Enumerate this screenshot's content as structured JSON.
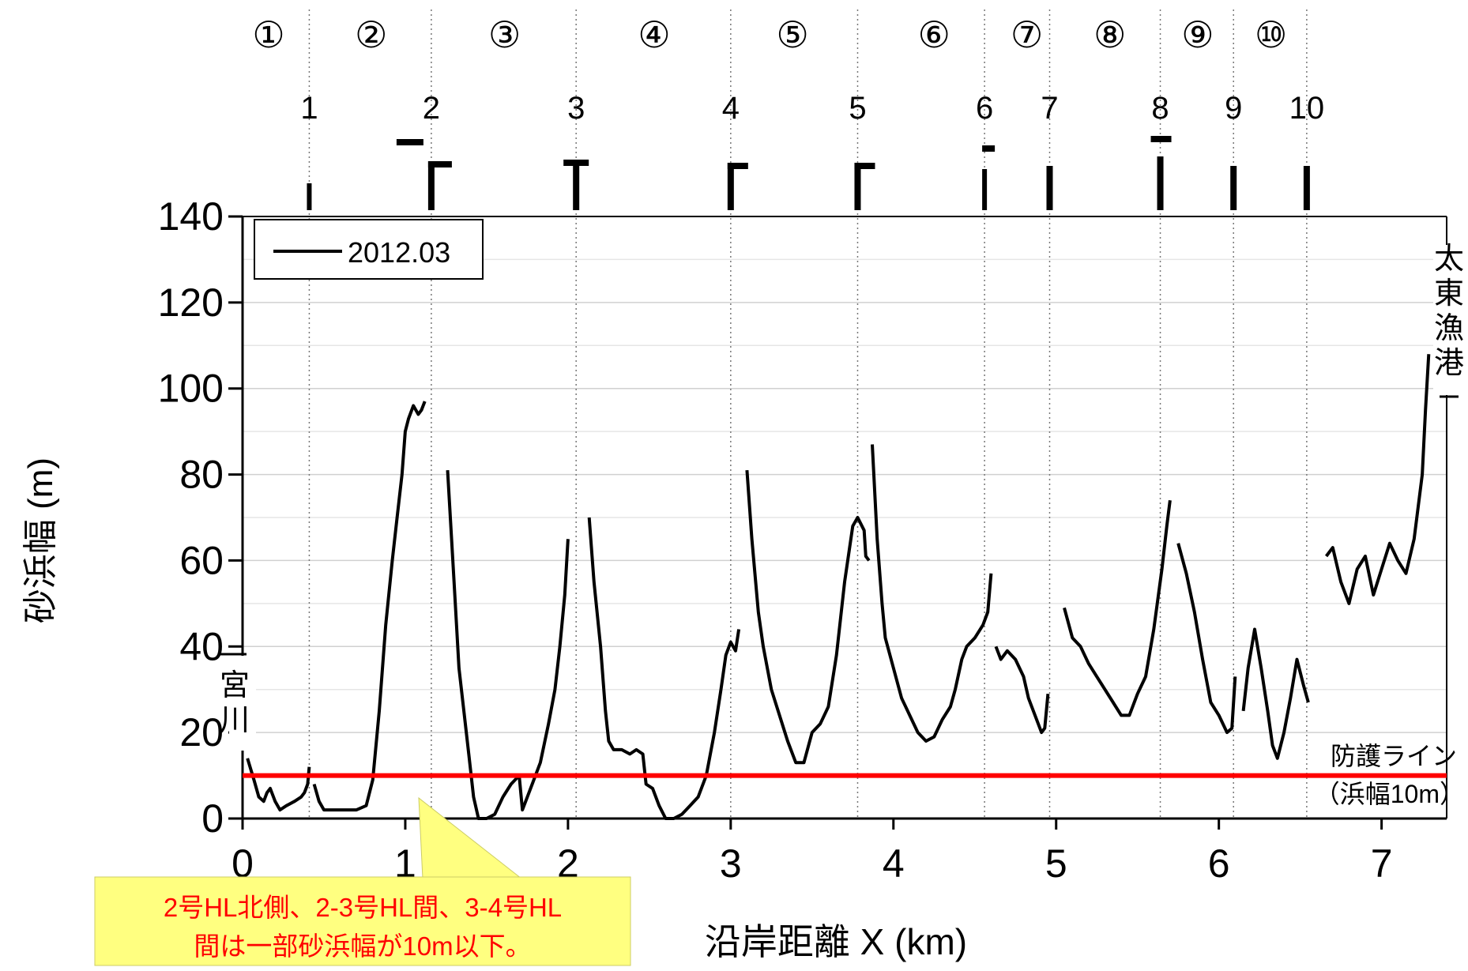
{
  "chart_data": {
    "type": "line",
    "xlabel": "沿岸距離 X (km)",
    "ylabel": "砂浜幅 (m)",
    "xlim": [
      0,
      7.4
    ],
    "ylim": [
      0,
      140
    ],
    "x_ticks": [
      0,
      1,
      2,
      3,
      4,
      5,
      6,
      7
    ],
    "y_ticks": [
      0,
      20,
      40,
      60,
      80,
      100,
      120,
      140
    ],
    "grid": true,
    "legend": {
      "entries": [
        "2012.03"
      ],
      "position": "top-left"
    },
    "series": [
      {
        "name": "2012.03",
        "color": "#000000",
        "segments": [
          [
            [
              0.03,
              14
            ],
            [
              0.07,
              9
            ],
            [
              0.1,
              5
            ],
            [
              0.13,
              4
            ],
            [
              0.15,
              6
            ],
            [
              0.17,
              7
            ],
            [
              0.2,
              4
            ],
            [
              0.23,
              2
            ],
            [
              0.27,
              3
            ],
            [
              0.32,
              4
            ],
            [
              0.36,
              5
            ],
            [
              0.38,
              6
            ],
            [
              0.4,
              8
            ],
            [
              0.41,
              12
            ]
          ],
          [
            [
              0.44,
              8
            ],
            [
              0.47,
              4
            ],
            [
              0.5,
              2
            ],
            [
              0.6,
              2
            ],
            [
              0.7,
              2
            ],
            [
              0.76,
              3
            ],
            [
              0.8,
              9
            ],
            [
              0.84,
              25
            ],
            [
              0.88,
              45
            ],
            [
              0.92,
              60
            ],
            [
              0.95,
              70
            ],
            [
              0.98,
              80
            ],
            [
              1.0,
              90
            ],
            [
              1.02,
              93
            ],
            [
              1.05,
              96
            ],
            [
              1.08,
              94
            ],
            [
              1.1,
              95
            ],
            [
              1.12,
              97
            ]
          ],
          [
            [
              1.26,
              81
            ],
            [
              1.3,
              55
            ],
            [
              1.33,
              35
            ],
            [
              1.36,
              25
            ],
            [
              1.39,
              15
            ],
            [
              1.42,
              5
            ],
            [
              1.45,
              0
            ],
            [
              1.5,
              0
            ],
            [
              1.55,
              1
            ],
            [
              1.6,
              5
            ],
            [
              1.65,
              8
            ],
            [
              1.7,
              10
            ],
            [
              1.72,
              2
            ],
            [
              1.75,
              5
            ],
            [
              1.78,
              8
            ],
            [
              1.83,
              13
            ],
            [
              1.88,
              22
            ],
            [
              1.92,
              30
            ],
            [
              1.95,
              40
            ],
            [
              1.98,
              52
            ],
            [
              2.0,
              65
            ]
          ],
          [
            [
              2.13,
              70
            ],
            [
              2.16,
              55
            ],
            [
              2.2,
              40
            ],
            [
              2.23,
              25
            ],
            [
              2.25,
              18
            ],
            [
              2.28,
              16
            ],
            [
              2.33,
              16
            ],
            [
              2.38,
              15
            ],
            [
              2.42,
              16
            ],
            [
              2.46,
              15
            ],
            [
              2.48,
              8
            ],
            [
              2.52,
              7
            ],
            [
              2.56,
              3
            ],
            [
              2.6,
              0
            ],
            [
              2.65,
              0
            ],
            [
              2.7,
              1
            ],
            [
              2.75,
              3
            ],
            [
              2.8,
              5
            ],
            [
              2.85,
              10
            ],
            [
              2.9,
              20
            ],
            [
              2.94,
              30
            ],
            [
              2.97,
              38
            ],
            [
              3.0,
              41
            ],
            [
              3.03,
              39
            ],
            [
              3.05,
              44
            ]
          ],
          [
            [
              3.1,
              81
            ],
            [
              3.13,
              65
            ],
            [
              3.17,
              48
            ],
            [
              3.2,
              40
            ],
            [
              3.25,
              30
            ],
            [
              3.3,
              24
            ],
            [
              3.35,
              18
            ],
            [
              3.4,
              13
            ],
            [
              3.45,
              13
            ],
            [
              3.5,
              20
            ],
            [
              3.55,
              22
            ],
            [
              3.6,
              26
            ],
            [
              3.65,
              38
            ],
            [
              3.7,
              55
            ],
            [
              3.75,
              68
            ],
            [
              3.78,
              70
            ],
            [
              3.82,
              67
            ],
            [
              3.83,
              61
            ],
            [
              3.85,
              60
            ]
          ],
          [
            [
              3.87,
              87
            ],
            [
              3.9,
              65
            ],
            [
              3.93,
              50
            ],
            [
              3.95,
              42
            ],
            [
              4.0,
              35
            ],
            [
              4.05,
              28
            ],
            [
              4.1,
              24
            ],
            [
              4.15,
              20
            ],
            [
              4.2,
              18
            ],
            [
              4.25,
              19
            ],
            [
              4.3,
              23
            ],
            [
              4.35,
              26
            ],
            [
              4.38,
              30
            ],
            [
              4.42,
              37
            ],
            [
              4.45,
              40
            ],
            [
              4.5,
              42
            ],
            [
              4.55,
              45
            ],
            [
              4.58,
              48
            ],
            [
              4.6,
              57
            ]
          ],
          [
            [
              4.63,
              40
            ],
            [
              4.66,
              37
            ],
            [
              4.7,
              39
            ],
            [
              4.75,
              37
            ],
            [
              4.8,
              33
            ],
            [
              4.83,
              28
            ],
            [
              4.87,
              24
            ],
            [
              4.91,
              20
            ],
            [
              4.93,
              21
            ],
            [
              4.95,
              29
            ]
          ],
          [
            [
              5.05,
              49
            ],
            [
              5.1,
              42
            ],
            [
              5.15,
              40
            ],
            [
              5.2,
              36
            ],
            [
              5.25,
              33
            ],
            [
              5.3,
              30
            ],
            [
              5.35,
              27
            ],
            [
              5.4,
              24
            ],
            [
              5.45,
              24
            ],
            [
              5.5,
              29
            ],
            [
              5.55,
              33
            ],
            [
              5.6,
              44
            ],
            [
              5.65,
              58
            ],
            [
              5.68,
              68
            ],
            [
              5.7,
              74
            ]
          ],
          [
            [
              5.75,
              64
            ],
            [
              5.8,
              57
            ],
            [
              5.85,
              48
            ],
            [
              5.9,
              37
            ],
            [
              5.95,
              27
            ],
            [
              6.0,
              24
            ],
            [
              6.05,
              20
            ],
            [
              6.08,
              21
            ],
            [
              6.1,
              33
            ]
          ],
          [
            [
              6.15,
              25
            ],
            [
              6.18,
              35
            ],
            [
              6.22,
              44
            ],
            [
              6.26,
              35
            ],
            [
              6.3,
              25
            ],
            [
              6.33,
              17
            ],
            [
              6.36,
              14
            ],
            [
              6.4,
              20
            ],
            [
              6.44,
              28
            ],
            [
              6.48,
              37
            ],
            [
              6.52,
              31
            ],
            [
              6.55,
              27
            ]
          ],
          [
            [
              6.66,
              61
            ],
            [
              6.7,
              63
            ],
            [
              6.75,
              55
            ],
            [
              6.8,
              50
            ],
            [
              6.85,
              58
            ],
            [
              6.9,
              61
            ],
            [
              6.95,
              52
            ],
            [
              7.0,
              58
            ],
            [
              7.05,
              64
            ],
            [
              7.1,
              60
            ],
            [
              7.15,
              57
            ],
            [
              7.2,
              65
            ],
            [
              7.25,
              80
            ],
            [
              7.27,
              95
            ],
            [
              7.29,
              108
            ]
          ]
        ]
      }
    ],
    "reference_line": {
      "y": 10,
      "color": "#ff0000",
      "label_1": "防護ライン",
      "label_2": "（浜幅10m）"
    },
    "section_labels": [
      "①",
      "②",
      "③",
      "④",
      "⑤",
      "⑥",
      "⑦",
      "⑧",
      "⑨",
      "⑩"
    ],
    "section_label_x": [
      0.16,
      0.79,
      1.61,
      2.53,
      3.38,
      4.25,
      4.82,
      5.33,
      5.87,
      6.32
    ],
    "hl_labels": [
      "1",
      "2",
      "3",
      "4",
      "5",
      "6",
      "7",
      "8",
      "9",
      "10"
    ],
    "hl_x": [
      0.41,
      1.16,
      2.05,
      3.0,
      3.78,
      4.56,
      4.96,
      5.64,
      6.09,
      6.54
    ],
    "side_label_left": "宮川",
    "side_label_right": "太東漁港",
    "annotation": {
      "line1": "2号HL北側、2-3号HL間、3-4号HL",
      "line2": "間は一部砂浜幅が10m以下。",
      "fill": "#ffff80",
      "text_color": "#ff0000"
    }
  }
}
